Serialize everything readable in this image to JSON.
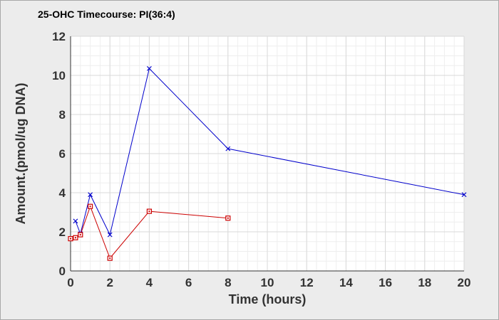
{
  "chart_data": {
    "type": "line",
    "title": "25-OHC Timecourse: PI(36:4)",
    "xlabel": "Time (hours)",
    "ylabel": "Amount.(pmol/ug DNA)",
    "xlim": [
      0,
      20
    ],
    "ylim": [
      0,
      12
    ],
    "x_ticks": [
      0,
      2,
      4,
      6,
      8,
      10,
      12,
      14,
      16,
      18,
      20
    ],
    "y_ticks": [
      0,
      2,
      4,
      6,
      8,
      10,
      12
    ],
    "grid": true,
    "legend": "none",
    "series": [
      {
        "color": "#0000cc",
        "marker": "x",
        "x": [
          0.25,
          0.5,
          1,
          2,
          4,
          8,
          20
        ],
        "y": [
          2.55,
          1.9,
          3.9,
          1.85,
          10.35,
          6.25,
          3.9
        ]
      },
      {
        "color": "#cc0000",
        "marker": "square",
        "x": [
          0,
          0.25,
          0.5,
          1,
          2,
          4,
          8
        ],
        "y": [
          1.65,
          1.7,
          1.85,
          3.3,
          0.65,
          3.05,
          2.7
        ]
      }
    ]
  },
  "colors": {
    "background": "#ececec",
    "plot_area": "#ffffff",
    "grid_major": "#d9d9d9",
    "grid_minor": "#eeeeee"
  }
}
